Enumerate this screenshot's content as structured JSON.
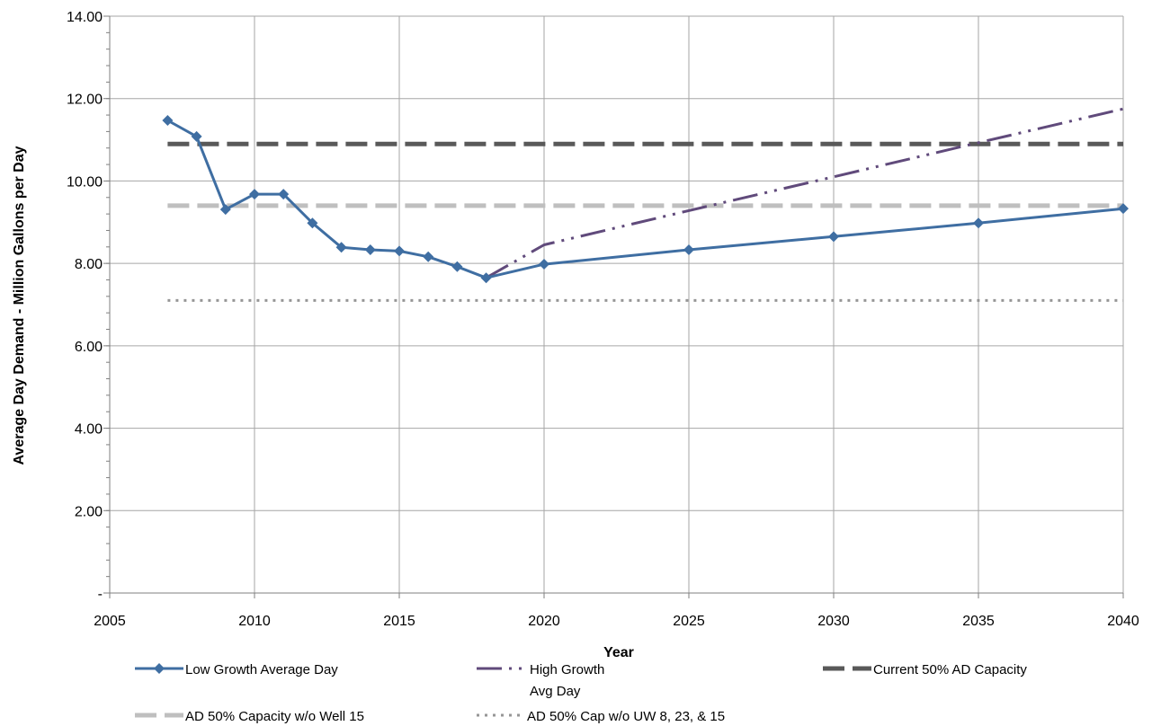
{
  "chart_data": {
    "type": "line",
    "xlabel": "Year",
    "ylabel": "Average Day Demand - Million Gallons per Day",
    "xlim": [
      2005,
      2040
    ],
    "ylim": [
      0,
      14
    ],
    "x_ticks": [
      "2005",
      "2010",
      "2015",
      "2020",
      "2025",
      "2030",
      "2035",
      "2040"
    ],
    "y_ticks": [
      "-",
      "2.00",
      "4.00",
      "6.00",
      "8.00",
      "10.00",
      "12.00",
      "14.00"
    ],
    "grid": true,
    "legend_position": "bottom",
    "series": [
      {
        "name": "Low Growth Average Day",
        "style": "solid-diamond",
        "color": "#3f6ea2",
        "x": [
          2007,
          2008,
          2009,
          2010,
          2011,
          2012,
          2013,
          2014,
          2015,
          2016,
          2017,
          2018,
          2020,
          2025,
          2030,
          2035,
          2040
        ],
        "y": [
          11.47,
          11.08,
          9.31,
          9.68,
          9.68,
          8.98,
          8.39,
          8.33,
          8.3,
          8.16,
          7.92,
          7.65,
          7.98,
          8.33,
          8.65,
          8.98,
          9.33
        ]
      },
      {
        "name": "High Growth Avg Day",
        "legend_lines": [
          "High Growth",
          "Avg Day"
        ],
        "style": "dash-dot-dot",
        "color": "#604a7b",
        "x": [
          2018,
          2020,
          2025,
          2030,
          2035,
          2040
        ],
        "y": [
          7.65,
          8.45,
          9.28,
          10.1,
          10.93,
          11.75
        ]
      },
      {
        "name": "Current 50% AD Capacity",
        "style": "dashed-thick",
        "color": "#595959",
        "x": [
          2007,
          2040
        ],
        "y": [
          10.9,
          10.9
        ]
      },
      {
        "name": "AD 50% Capacity w/o Well 15",
        "style": "dashed-thick",
        "color": "#bfbfbf",
        "x": [
          2007,
          2040
        ],
        "y": [
          9.4,
          9.4
        ]
      },
      {
        "name": "AD 50% Cap w/o UW 8, 23, & 15",
        "style": "dotted",
        "color": "#969696",
        "x": [
          2007,
          2040
        ],
        "y": [
          7.1,
          7.1
        ]
      }
    ]
  }
}
